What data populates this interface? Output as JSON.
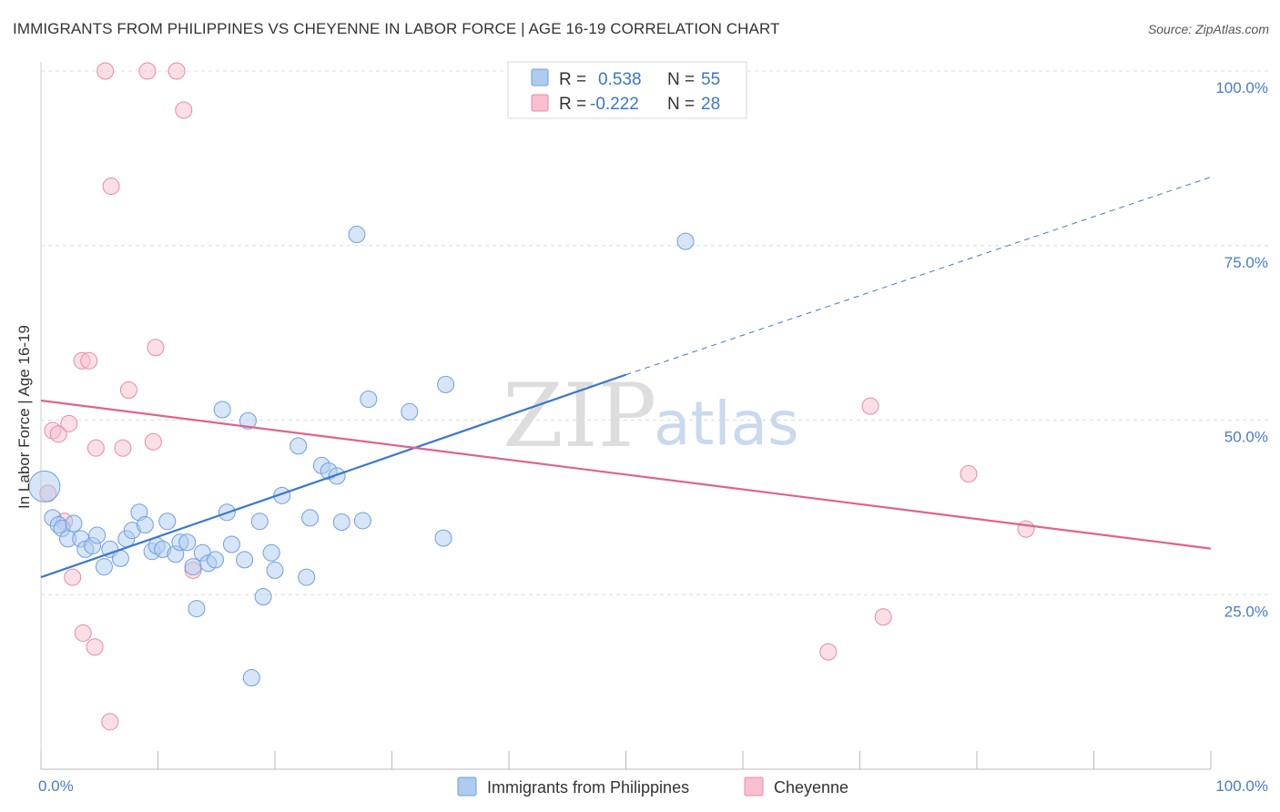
{
  "title": "IMMIGRANTS FROM PHILIPPINES VS CHEYENNE IN LABOR FORCE | AGE 16-19 CORRELATION CHART",
  "source": "Source: ZipAtlas.com",
  "watermark": {
    "zip": "ZIP",
    "atlas": "atlas"
  },
  "legend": {
    "r_label": "R =",
    "n_label": "N =",
    "rows": [
      {
        "r": "0.538",
        "n": "55",
        "color": "#aecbf0",
        "stroke": "#6f9fe0"
      },
      {
        "r": "-0.222",
        "n": "28",
        "color": "#f7bfd0",
        "stroke": "#e889a8"
      }
    ]
  },
  "bottom_legend": [
    {
      "label": "Immigrants from Philippines",
      "color": "#aecbf0",
      "stroke": "#6f9fe0"
    },
    {
      "label": "Cheyenne",
      "color": "#f7bfd0",
      "stroke": "#e889a8"
    }
  ],
  "chart_data": {
    "type": "scatter",
    "title": "IMMIGRANTS FROM PHILIPPINES VS CHEYENNE IN LABOR FORCE | AGE 16-19 CORRELATION CHART",
    "xlabel": "",
    "ylabel": "In Labor Force | Age 16-19",
    "xlim": [
      0,
      100
    ],
    "ylim": [
      0,
      100
    ],
    "x_tick_labels": [
      "0.0%",
      "100.0%"
    ],
    "y_ticks": [
      25,
      50,
      75,
      100
    ],
    "y_tick_labels": [
      "25.0%",
      "50.0%",
      "75.0%",
      "100.0%"
    ],
    "grid": true,
    "legend_position": "top-center",
    "series": [
      {
        "name": "Immigrants from Philippines",
        "color": "#3a78d0",
        "marker_fill": "#aecbf0",
        "r": 0.538,
        "n": 55,
        "trend": {
          "x0": 0,
          "y0": 27.5,
          "x1": 50,
          "y1": 56.5,
          "dashed_to_x": 100,
          "dashed_to_y": 84.8
        },
        "points": [
          [
            0.3,
            40.5,
            "big"
          ],
          [
            1.0,
            36.0
          ],
          [
            1.5,
            35.0
          ],
          [
            1.8,
            34.5
          ],
          [
            2.3,
            33.0
          ],
          [
            2.8,
            35.2
          ],
          [
            3.4,
            33.0
          ],
          [
            3.8,
            31.5
          ],
          [
            4.4,
            32.0
          ],
          [
            4.8,
            33.5
          ],
          [
            5.4,
            29.0
          ],
          [
            5.9,
            31.5
          ],
          [
            6.8,
            30.2
          ],
          [
            7.3,
            33.0
          ],
          [
            7.8,
            34.2
          ],
          [
            8.4,
            36.8
          ],
          [
            8.9,
            35.0
          ],
          [
            9.5,
            31.2
          ],
          [
            9.9,
            32.0
          ],
          [
            10.4,
            31.5
          ],
          [
            10.8,
            35.5
          ],
          [
            11.5,
            30.8
          ],
          [
            11.9,
            32.5
          ],
          [
            12.5,
            32.5
          ],
          [
            13.0,
            29.0
          ],
          [
            13.3,
            23.0
          ],
          [
            13.8,
            31.0
          ],
          [
            14.3,
            29.5
          ],
          [
            14.9,
            30.0
          ],
          [
            15.5,
            51.5
          ],
          [
            15.9,
            36.8
          ],
          [
            16.3,
            32.2
          ],
          [
            17.4,
            30.0
          ],
          [
            17.7,
            49.9
          ],
          [
            18.0,
            13.1
          ],
          [
            18.7,
            35.5
          ],
          [
            19.0,
            24.7
          ],
          [
            19.7,
            31.0
          ],
          [
            20.0,
            28.5
          ],
          [
            20.6,
            39.2
          ],
          [
            22.0,
            46.3
          ],
          [
            22.7,
            27.5
          ],
          [
            23.0,
            36.0
          ],
          [
            24.0,
            43.5
          ],
          [
            24.6,
            42.7
          ],
          [
            25.3,
            42.0
          ],
          [
            25.7,
            35.4
          ],
          [
            27.0,
            76.6
          ],
          [
            27.5,
            35.6
          ],
          [
            28.0,
            53.0
          ],
          [
            31.5,
            51.2
          ],
          [
            34.4,
            33.1
          ],
          [
            34.6,
            55.1
          ],
          [
            55.1,
            75.6
          ]
        ]
      },
      {
        "name": "Cheyenne",
        "color": "#e0628e",
        "marker_fill": "#f7bfd0",
        "r": -0.222,
        "n": 28,
        "trend": {
          "x0": 0,
          "y0": 52.8,
          "x1": 100,
          "y1": 31.6
        },
        "points": [
          [
            0.6,
            39.5
          ],
          [
            1.0,
            48.5
          ],
          [
            1.5,
            48.0
          ],
          [
            2.0,
            35.5
          ],
          [
            2.4,
            49.5
          ],
          [
            2.7,
            27.5
          ],
          [
            3.5,
            58.5
          ],
          [
            3.6,
            19.5
          ],
          [
            4.1,
            58.5
          ],
          [
            4.6,
            17.5
          ],
          [
            4.7,
            46.0
          ],
          [
            5.5,
            100.0
          ],
          [
            5.9,
            6.8
          ],
          [
            6.0,
            83.5
          ],
          [
            7.0,
            46.0
          ],
          [
            7.5,
            54.3
          ],
          [
            9.1,
            100.0
          ],
          [
            9.6,
            46.9
          ],
          [
            9.8,
            60.4
          ],
          [
            11.6,
            100.0
          ],
          [
            12.2,
            94.4
          ],
          [
            13.0,
            28.5
          ],
          [
            67.3,
            16.8
          ],
          [
            70.9,
            52.0
          ],
          [
            72.0,
            21.8
          ],
          [
            79.3,
            42.3
          ],
          [
            84.2,
            34.4
          ]
        ]
      }
    ]
  }
}
